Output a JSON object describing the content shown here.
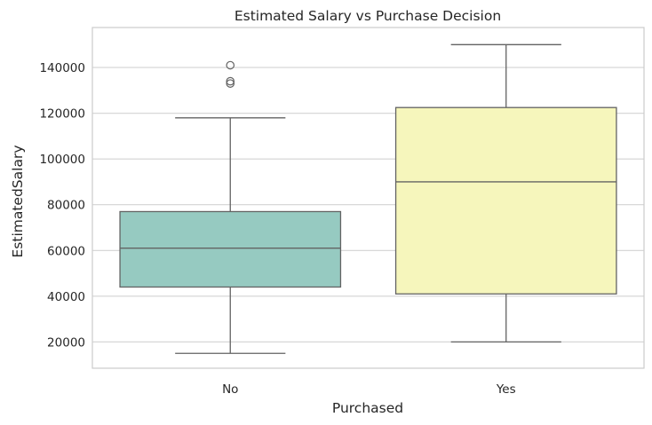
{
  "chart_data": {
    "type": "box",
    "title": "Estimated Salary vs Purchase Decision",
    "xlabel": "Purchased",
    "ylabel": "EstimatedSalary",
    "categories": [
      "No",
      "Yes"
    ],
    "ylim": [
      8500,
      157500
    ],
    "yticks": [
      20000,
      40000,
      60000,
      80000,
      100000,
      120000,
      140000
    ],
    "ytick_labels": [
      "20000",
      "40000",
      "60000",
      "80000",
      "100000",
      "120000",
      "140000"
    ],
    "grid": true,
    "grid_axis": "y",
    "boxes": [
      {
        "category": "No",
        "whisker_low": 15000,
        "q1": 44000,
        "median": 61000,
        "q3": 77000,
        "whisker_high": 118000,
        "outliers": [
          141000,
          134000,
          133000
        ],
        "color": "#96cac1"
      },
      {
        "category": "Yes",
        "whisker_low": 20000,
        "q1": 41000,
        "median": 90000,
        "q3": 122500,
        "whisker_high": 150000,
        "outliers": [],
        "color": "#f6f6bc"
      }
    ],
    "colors": {
      "box_edge": "#636363",
      "grid": "#d3d3d3",
      "axes_edge": "#cccccc",
      "text": "#262626"
    }
  }
}
